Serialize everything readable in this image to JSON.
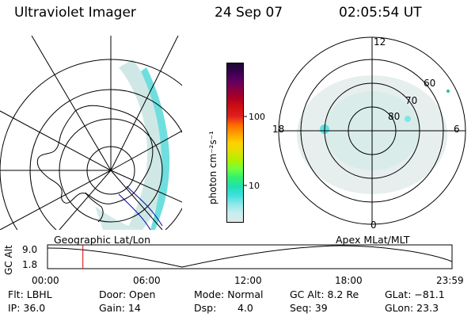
{
  "header": {
    "instrument": "Ultraviolet Imager",
    "date": "24 Sep 07",
    "time": "02:05:54 UT"
  },
  "left_map": {
    "label": "Geographic Lat/Lon"
  },
  "right_map": {
    "label": "Apex MLat/MLT",
    "mlt_labels": {
      "top": "12",
      "bottom": "0",
      "left": "18",
      "right": "6"
    },
    "lat_labels": [
      "60",
      "70",
      "80"
    ]
  },
  "colorbar": {
    "unit_label": "photon cm⁻²s⁻¹",
    "ticks": [
      "100",
      "10"
    ],
    "scale": "log",
    "colors": [
      "#1a0a2e",
      "#3a0050",
      "#600060",
      "#8a0040",
      "#b00020",
      "#d01010",
      "#e02020",
      "#ff6a00",
      "#ffa000",
      "#ffd000",
      "#e0e000",
      "#b0f000",
      "#70ff40",
      "#30f070",
      "#20e0b0",
      "#40e0e0",
      "#90e8e8",
      "#c8eeee",
      "#e0e8e8"
    ]
  },
  "altitude_plot": {
    "ylabel": "GC Alt",
    "yticks": [
      "9.0",
      "1.8"
    ],
    "xticks": [
      "00:00",
      "06:00",
      "12:00",
      "18:00",
      "23:59"
    ],
    "current_marker_time": "02:05:54",
    "marker_color": "#dd0000"
  },
  "info": {
    "flt": "Flt: LBHL",
    "ip": "IP: 36.0",
    "door": "Door: Open",
    "gain": "Gain: 14",
    "mode": "Mode: Normal",
    "dsp_label": "Dsp:",
    "dsp_value": "4.0",
    "gc_alt": "GC Alt: 8.2 Re",
    "seq": "Seq: 39",
    "glat": "GLat: −81.1",
    "glon": "GLon:  23.3"
  }
}
